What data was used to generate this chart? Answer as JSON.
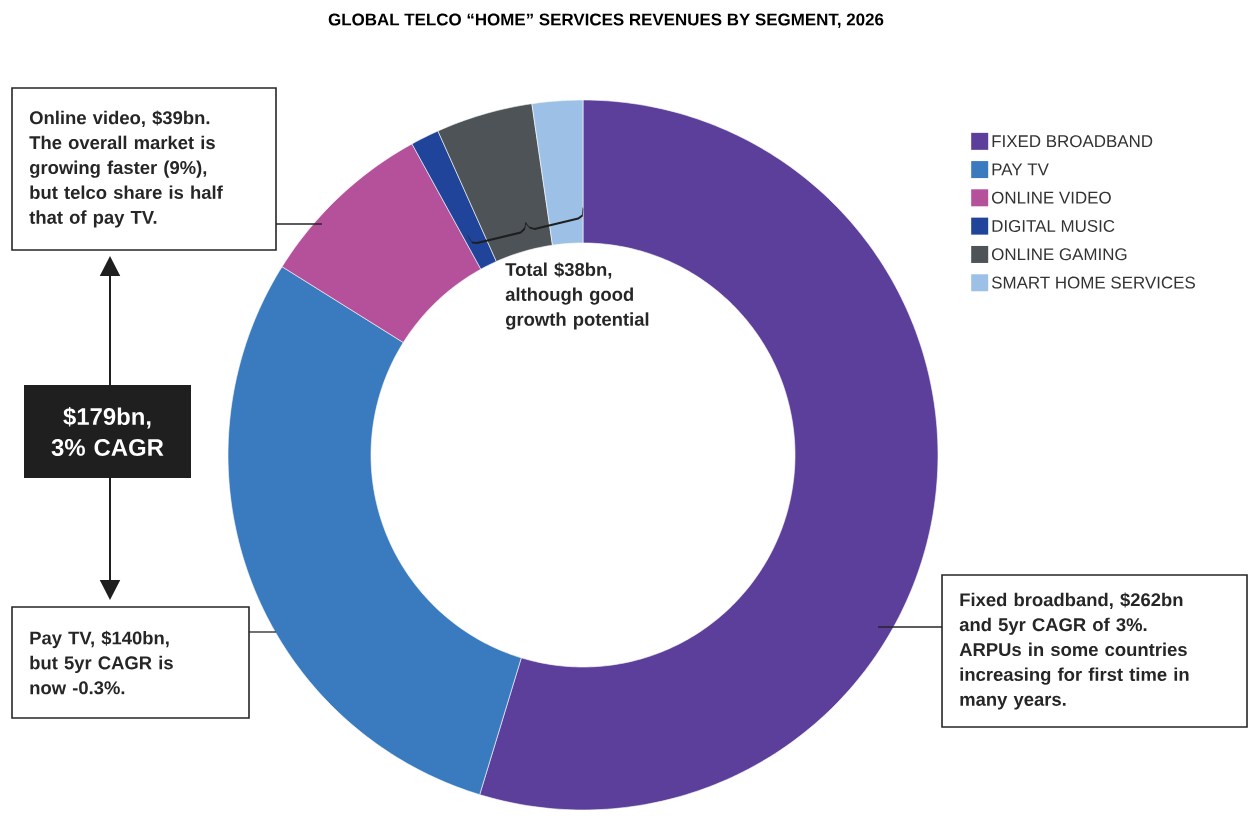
{
  "chart_data": {
    "type": "donut",
    "title": "GLOBAL TELCO “HOME” SERVICES REVENUES BY SEGMENT, 2026",
    "categories": [
      "FIXED BROADBAND",
      "PAY TV",
      "ONLINE VIDEO",
      "DIGITAL MUSIC",
      "ONLINE GAMING",
      "SMART HOME SERVICES"
    ],
    "values": [
      54.7,
      29.2,
      8.1,
      1.3,
      4.4,
      2.3
    ],
    "colors": [
      "#5b3f9a",
      "#3a7abf",
      "#b5519b",
      "#1f449a",
      "#4d5357",
      "#9dc0e6"
    ],
    "legend": "top right",
    "annotations": [
      "Online video, $39bn. The overall market is growing faster (9%), but telco share is half that of pay TV.",
      "Total $38bn, although good growth potential",
      "$179bn, 3% CAGR",
      "Pay TV, $140bn, but 5yr CAGR is now -0.3%.",
      "Fixed broadband, $262bn and 5yr CAGR of 3%. ARPUs in some countries increasing for first time in many years."
    ]
  }
}
